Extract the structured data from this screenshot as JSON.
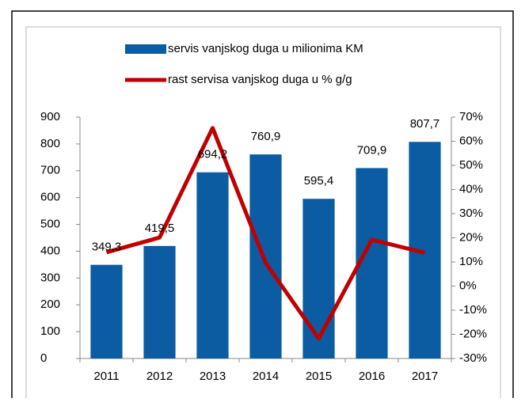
{
  "chart_data": {
    "type": "bar+line",
    "categories": [
      "2011",
      "2012",
      "2013",
      "2014",
      "2015",
      "2016",
      "2017"
    ],
    "series": [
      {
        "name": "servis vanjskog duga u milionima KM",
        "color": "#0b5ca2",
        "type": "bar",
        "axis": "y",
        "values": [
          349.3,
          419.5,
          694.2,
          760.9,
          595.4,
          709.9,
          807.7
        ],
        "value_labels": [
          "349,3",
          "419,5",
          "694,2",
          "760,9",
          "595,4",
          "709,9",
          "807,7"
        ]
      },
      {
        "name": "rast servisa vanjskog duga u % g/g",
        "color": "#c00000",
        "type": "line",
        "axis": "y2",
        "values": [
          14,
          20.1,
          65.5,
          9.6,
          -21.8,
          19.2,
          13.8
        ]
      }
    ],
    "ylim": [
      0,
      900
    ],
    "yticks": [
      0,
      100,
      200,
      300,
      400,
      500,
      600,
      700,
      800,
      900
    ],
    "y2lim": [
      -30,
      70
    ],
    "y2ticks": [
      {
        "value": -30,
        "label": "-30%"
      },
      {
        "value": -20,
        "label": "-20%"
      },
      {
        "value": -10,
        "label": "-10%"
      },
      {
        "value": 0,
        "label": "0%"
      },
      {
        "value": 10,
        "label": "10%"
      },
      {
        "value": 20,
        "label": "20%"
      },
      {
        "value": 30,
        "label": "30%"
      },
      {
        "value": 40,
        "label": "40%"
      },
      {
        "value": 50,
        "label": "50%"
      },
      {
        "value": 60,
        "label": "60%"
      },
      {
        "value": 70,
        "label": "70%"
      }
    ],
    "legend": "top"
  }
}
